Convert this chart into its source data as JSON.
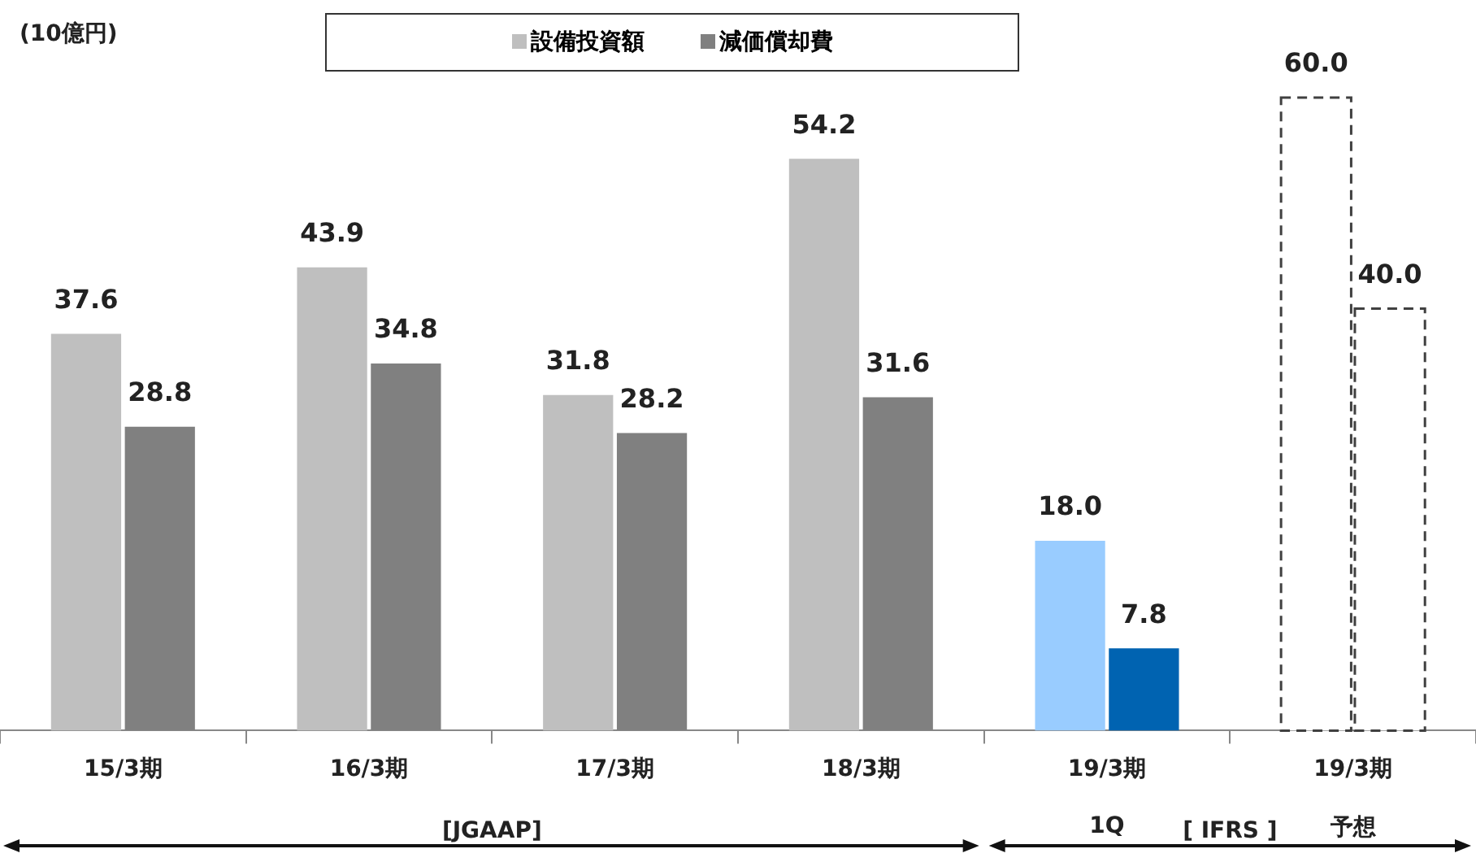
{
  "chart_data": {
    "type": "bar",
    "categories": [
      "15/3期",
      "16/3期",
      "17/3期",
      "18/3期",
      "19/3期",
      "19/3期"
    ],
    "series": [
      {
        "name": "設備投資額",
        "color": "#bfbfbf",
        "colors": [
          "#bfbfbf",
          "#bfbfbf",
          "#bfbfbf",
          "#bfbfbf",
          "#99ccff",
          "#ffffff"
        ],
        "values": [
          37.6,
          43.9,
          31.8,
          54.2,
          18.0,
          60.0
        ],
        "value_labels": [
          "37.6",
          "43.9",
          "31.8",
          "54.2",
          "18.0",
          "60.0"
        ]
      },
      {
        "name": "減価償却費",
        "color": "#808080",
        "colors": [
          "#808080",
          "#808080",
          "#808080",
          "#808080",
          "#0063b1",
          "#ffffff"
        ],
        "values": [
          28.8,
          34.8,
          28.2,
          31.6,
          7.8,
          40.0
        ],
        "value_labels": [
          "28.8",
          "34.8",
          "28.2",
          "31.6",
          "7.8",
          "40.0"
        ]
      }
    ],
    "tick_labels": "x",
    "legend": "top",
    "annotations": [
      "(10億円)",
      "[JGAAP]",
      "1Q",
      "[ IFRS ]",
      "予想"
    ]
  }
}
